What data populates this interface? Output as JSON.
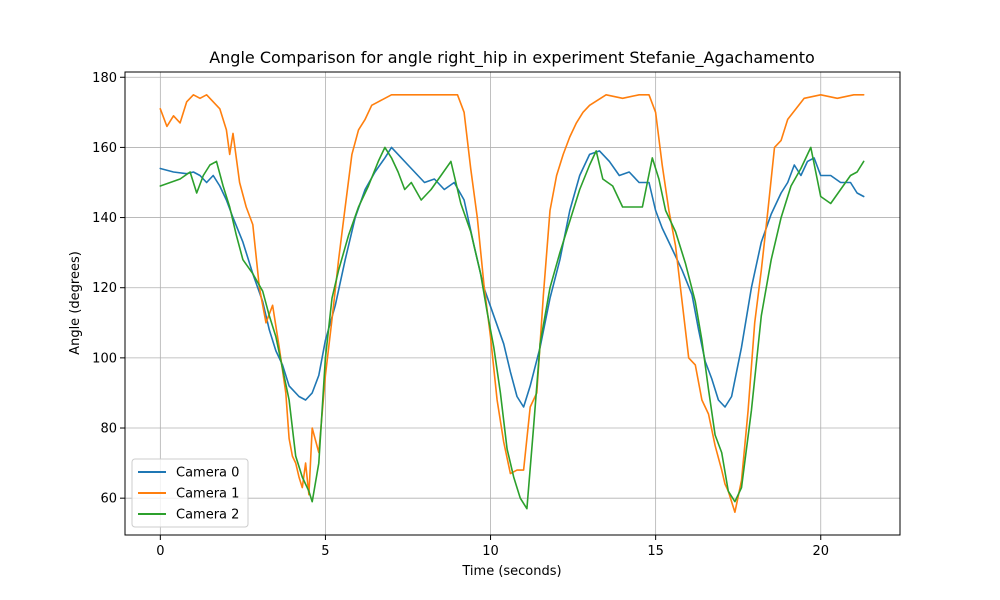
{
  "chart_data": {
    "type": "line",
    "title": "Angle Comparison for angle right_hip in experiment Stefanie_Agachamento",
    "xlabel": "Time (seconds)",
    "ylabel": "Angle (degrees)",
    "xlim": [
      -1.07,
      22.4
    ],
    "ylim": [
      49.5,
      181.5
    ],
    "xticks": [
      0,
      5,
      10,
      15,
      20
    ],
    "yticks": [
      60,
      80,
      100,
      120,
      140,
      160,
      180
    ],
    "grid": true,
    "legend_position": "lower-left",
    "series": [
      {
        "name": "Camera 0",
        "color": "#1f77b4",
        "x": [
          0,
          0.4,
          0.8,
          1.0,
          1.2,
          1.4,
          1.6,
          1.8,
          2.0,
          2.2,
          2.5,
          2.8,
          3.1,
          3.3,
          3.5,
          3.7,
          3.9,
          4.0,
          4.2,
          4.4,
          4.6,
          4.8,
          5.0,
          5.3,
          5.6,
          5.9,
          6.2,
          6.5,
          6.8,
          7.0,
          7.2,
          7.5,
          7.8,
          8.0,
          8.3,
          8.6,
          8.9,
          9.2,
          9.5,
          9.8,
          10.1,
          10.4,
          10.6,
          10.8,
          11.0,
          11.2,
          11.5,
          11.8,
          12.1,
          12.4,
          12.7,
          13.0,
          13.3,
          13.6,
          13.9,
          14.2,
          14.5,
          14.8,
          15.0,
          15.2,
          15.5,
          15.8,
          16.1,
          16.3,
          16.5,
          16.7,
          16.9,
          17.1,
          17.3,
          17.6,
          17.9,
          18.2,
          18.5,
          18.8,
          19.0,
          19.2,
          19.4,
          19.6,
          19.8,
          20.0,
          20.3,
          20.6,
          20.9,
          21.1,
          21.3
        ],
        "values": [
          154,
          153,
          152.5,
          153,
          152,
          150,
          152,
          149,
          145,
          140,
          133,
          124,
          116,
          108,
          102,
          98,
          92,
          91,
          89,
          88,
          90,
          95,
          105,
          115,
          128,
          140,
          148,
          153,
          157,
          160,
          158,
          155,
          152,
          150,
          151,
          148,
          150,
          145,
          132,
          120,
          112,
          104,
          96,
          89,
          86,
          92,
          103,
          117,
          128,
          142,
          152,
          158,
          159,
          156,
          152,
          153,
          150,
          150,
          142,
          137,
          131,
          125,
          118,
          108,
          99,
          94,
          88,
          86,
          89,
          103,
          120,
          133,
          141,
          147,
          150,
          155,
          152,
          156,
          157,
          152,
          152,
          150,
          150,
          147,
          146
        ]
      },
      {
        "name": "Camera 1",
        "color": "#ff7f0e",
        "x": [
          0,
          0.2,
          0.4,
          0.6,
          0.8,
          1.0,
          1.2,
          1.4,
          1.6,
          1.8,
          2.0,
          2.1,
          2.2,
          2.4,
          2.6,
          2.8,
          3.0,
          3.2,
          3.4,
          3.6,
          3.8,
          3.9,
          4.0,
          4.1,
          4.2,
          4.3,
          4.4,
          4.5,
          4.6,
          4.8,
          5.0,
          5.2,
          5.4,
          5.6,
          5.8,
          6.0,
          6.2,
          6.4,
          6.6,
          6.8,
          7.0,
          7.5,
          8.0,
          8.5,
          9.0,
          9.2,
          9.4,
          9.6,
          9.8,
          10.0,
          10.2,
          10.4,
          10.6,
          10.8,
          11.0,
          11.2,
          11.4,
          11.6,
          11.8,
          12.0,
          12.2,
          12.4,
          12.6,
          12.8,
          13.0,
          13.5,
          14.0,
          14.5,
          14.8,
          15.0,
          15.2,
          15.4,
          15.6,
          15.8,
          16.0,
          16.2,
          16.4,
          16.6,
          16.8,
          17.0,
          17.1,
          17.2,
          17.4,
          17.6,
          17.8,
          18.0,
          18.2,
          18.4,
          18.6,
          18.8,
          19.0,
          19.5,
          20.0,
          20.5,
          21.0,
          21.3
        ],
        "values": [
          171,
          166,
          169,
          167,
          173,
          175,
          174,
          175,
          173,
          171,
          165,
          158,
          164,
          150,
          143,
          138,
          120,
          110,
          115,
          103,
          90,
          77,
          72,
          70,
          66,
          63,
          70,
          61,
          80,
          73,
          95,
          111,
          128,
          143,
          158,
          165,
          168,
          172,
          173,
          174,
          175,
          175,
          175,
          175,
          175,
          170,
          154,
          140,
          121,
          106,
          88,
          76,
          67,
          68,
          68,
          86,
          90,
          118,
          142,
          152,
          158,
          163,
          167,
          170,
          172,
          175,
          174,
          175,
          175,
          170,
          155,
          142,
          132,
          116,
          100,
          98,
          88,
          84,
          75,
          68,
          64,
          62,
          56,
          65,
          85,
          110,
          125,
          142,
          160,
          162,
          168,
          174,
          175,
          174,
          175,
          175
        ]
      },
      {
        "name": "Camera 2",
        "color": "#2ca02c",
        "x": [
          0,
          0.3,
          0.6,
          0.9,
          1.1,
          1.3,
          1.5,
          1.7,
          1.9,
          2.1,
          2.3,
          2.5,
          2.8,
          3.1,
          3.3,
          3.5,
          3.7,
          3.9,
          4.1,
          4.3,
          4.5,
          4.6,
          4.8,
          5.0,
          5.2,
          5.4,
          5.7,
          6.0,
          6.3,
          6.6,
          6.8,
          7.0,
          7.2,
          7.4,
          7.6,
          7.9,
          8.2,
          8.5,
          8.8,
          9.1,
          9.4,
          9.7,
          9.9,
          10.1,
          10.3,
          10.5,
          10.7,
          10.9,
          11.1,
          11.3,
          11.5,
          11.8,
          12.1,
          12.4,
          12.7,
          13.0,
          13.2,
          13.4,
          13.7,
          14.0,
          14.3,
          14.6,
          14.9,
          15.1,
          15.3,
          15.6,
          15.9,
          16.2,
          16.4,
          16.6,
          16.8,
          17.0,
          17.2,
          17.4,
          17.6,
          17.9,
          18.2,
          18.5,
          18.8,
          19.1,
          19.4,
          19.7,
          20.0,
          20.3,
          20.6,
          20.9,
          21.1,
          21.3
        ],
        "values": [
          149,
          150,
          151,
          153,
          147,
          152,
          155,
          156,
          149,
          143,
          135,
          128,
          124,
          119,
          112,
          106,
          97,
          88,
          72,
          66,
          62,
          59,
          70,
          100,
          117,
          125,
          135,
          143,
          149,
          156,
          160,
          157,
          153,
          148,
          150,
          145,
          148,
          152,
          156,
          144,
          136,
          124,
          113,
          103,
          90,
          74,
          66,
          60,
          57,
          80,
          104,
          120,
          130,
          139,
          148,
          155,
          159,
          151,
          149,
          143,
          143,
          143,
          157,
          151,
          142,
          136,
          127,
          116,
          105,
          91,
          78,
          73,
          62,
          59,
          63,
          85,
          112,
          128,
          140,
          149,
          154,
          160,
          146,
          144,
          148,
          152,
          153,
          156
        ]
      }
    ]
  }
}
